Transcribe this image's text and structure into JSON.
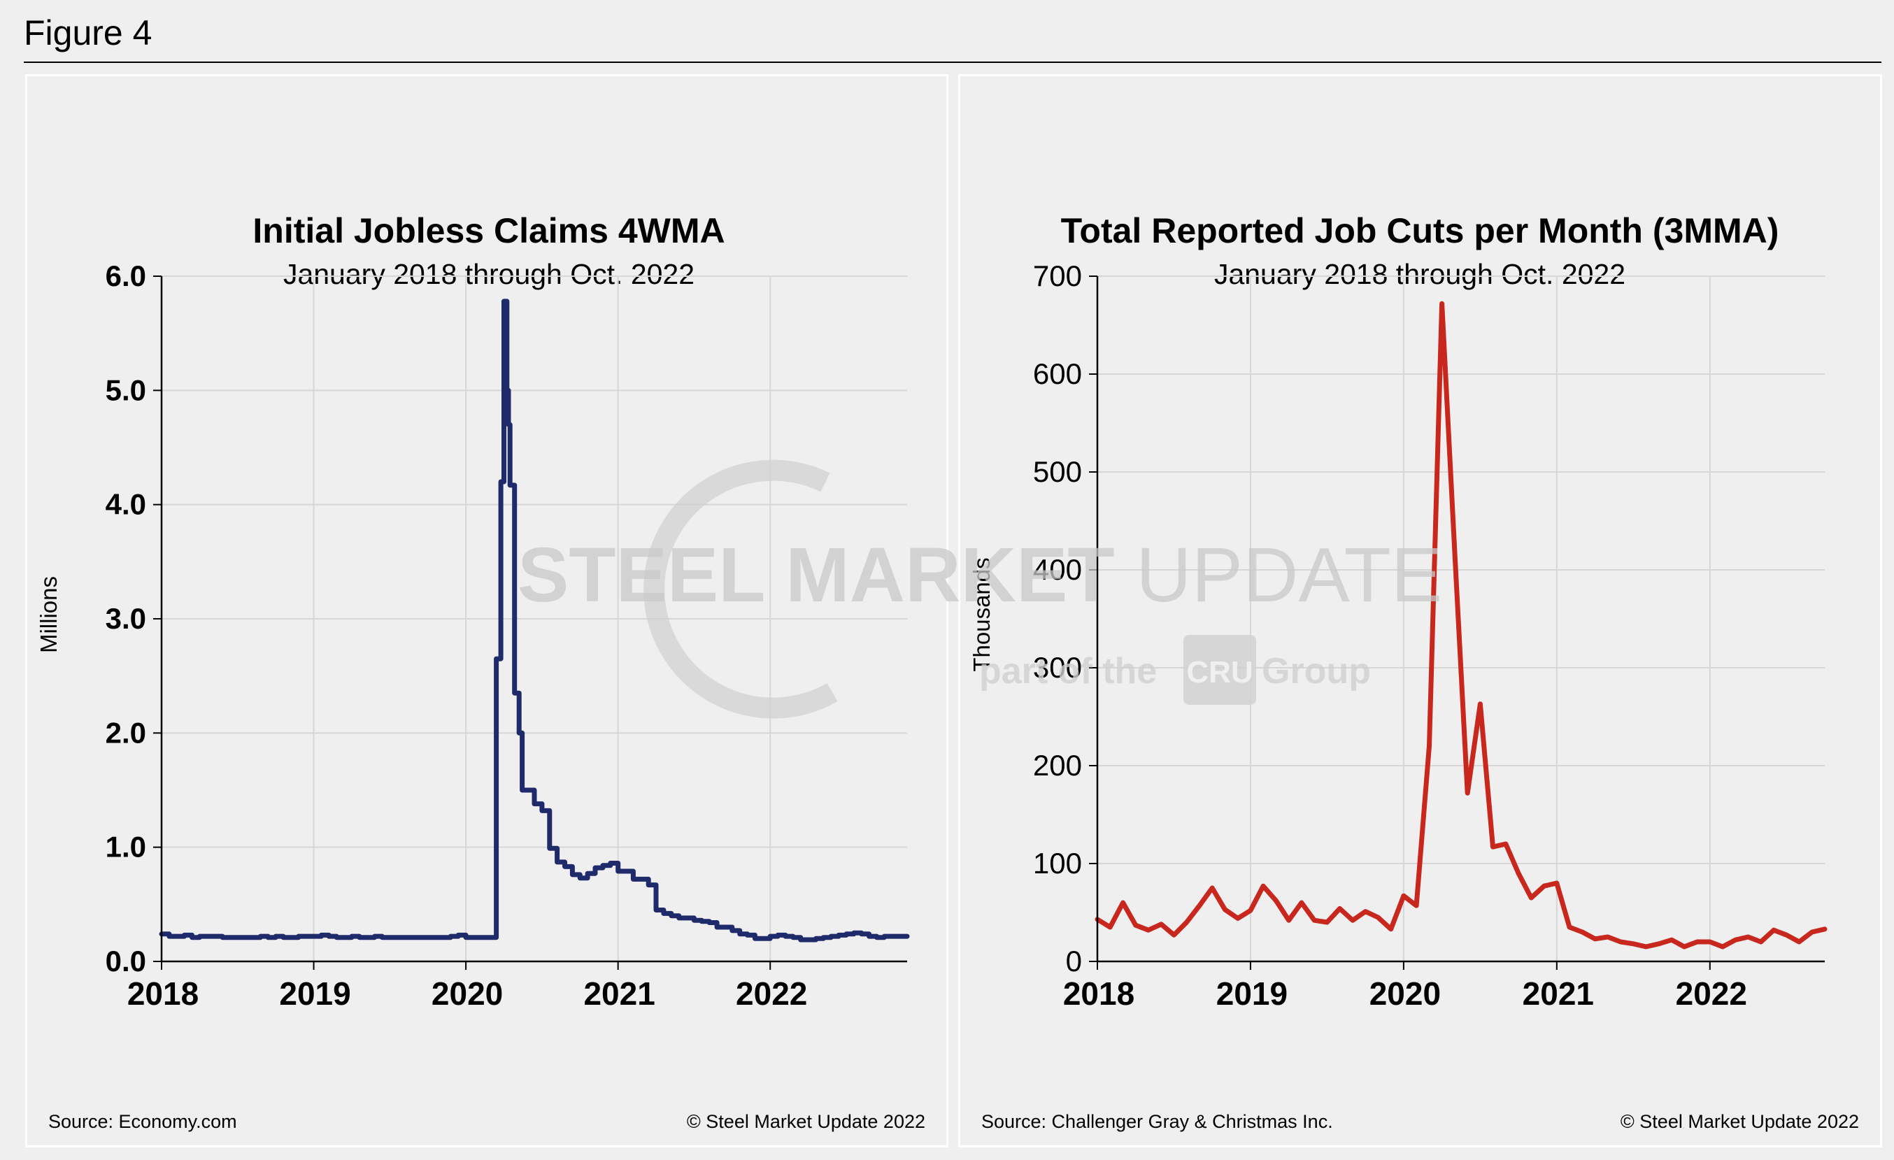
{
  "figure": {
    "label": "Figure 4"
  },
  "watermark": {
    "text_bold": "STEEL MARKET",
    "text_light": " UPDATE",
    "sub_pre": "part of the ",
    "sub_logo": "CRU",
    "sub_post": " Group"
  },
  "colors": {
    "left_series": "#1f2a6b",
    "right_series": "#c8271e",
    "grid": "#d6d6d6"
  },
  "chart_data": [
    {
      "type": "line",
      "title": "Initial Jobless Claims 4WMA",
      "subtitle": "January 2018 through Oct. 2022",
      "ylabel": "Millions",
      "xlabel": "",
      "x_ticks": [
        "2018",
        "2019",
        "2020",
        "2021",
        "2022"
      ],
      "y_ticks": [
        "6.0",
        "5.0",
        "4.0",
        "3.0",
        "2.0",
        "1.0",
        "0.0"
      ],
      "xlim": [
        2018.0,
        2022.9
      ],
      "ylim": [
        0,
        6
      ],
      "grid": true,
      "source": "Source: Economy.com",
      "copyright": "© Steel Market Update 2022",
      "series": [
        {
          "color": "#1f2a6b",
          "step": true,
          "x": [
            2018.0,
            2018.05,
            2018.1,
            2018.15,
            2018.2,
            2018.25,
            2018.3,
            2018.35,
            2018.4,
            2018.45,
            2018.5,
            2018.55,
            2018.6,
            2018.65,
            2018.7,
            2018.75,
            2018.8,
            2018.85,
            2018.9,
            2018.95,
            2019.0,
            2019.05,
            2019.1,
            2019.15,
            2019.2,
            2019.25,
            2019.3,
            2019.35,
            2019.4,
            2019.45,
            2019.5,
            2019.55,
            2019.6,
            2019.65,
            2019.7,
            2019.75,
            2019.8,
            2019.85,
            2019.9,
            2019.95,
            2020.0,
            2020.05,
            2020.1,
            2020.15,
            2020.2,
            2020.23,
            2020.25,
            2020.27,
            2020.28,
            2020.29,
            2020.32,
            2020.35,
            2020.37,
            2020.45,
            2020.5,
            2020.55,
            2020.6,
            2020.65,
            2020.7,
            2020.75,
            2020.8,
            2020.85,
            2020.9,
            2020.95,
            2021.0,
            2021.05,
            2021.1,
            2021.15,
            2021.2,
            2021.25,
            2021.3,
            2021.35,
            2021.4,
            2021.45,
            2021.5,
            2021.55,
            2021.6,
            2021.65,
            2021.7,
            2021.75,
            2021.8,
            2021.85,
            2021.9,
            2021.95,
            2022.0,
            2022.05,
            2022.1,
            2022.15,
            2022.2,
            2022.25,
            2022.3,
            2022.35,
            2022.4,
            2022.45,
            2022.5,
            2022.55,
            2022.6,
            2022.65,
            2022.7,
            2022.75,
            2022.8,
            2022.85,
            2022.9
          ],
          "y": [
            0.24,
            0.22,
            0.22,
            0.23,
            0.21,
            0.22,
            0.22,
            0.22,
            0.21,
            0.21,
            0.21,
            0.21,
            0.21,
            0.22,
            0.21,
            0.22,
            0.21,
            0.21,
            0.22,
            0.22,
            0.22,
            0.23,
            0.22,
            0.21,
            0.21,
            0.22,
            0.21,
            0.21,
            0.22,
            0.21,
            0.21,
            0.21,
            0.21,
            0.21,
            0.21,
            0.21,
            0.21,
            0.21,
            0.22,
            0.23,
            0.21,
            0.21,
            0.21,
            0.21,
            2.65,
            4.2,
            5.78,
            5.0,
            4.7,
            4.17,
            2.35,
            2.0,
            1.5,
            1.38,
            1.32,
            0.99,
            0.87,
            0.83,
            0.76,
            0.73,
            0.77,
            0.82,
            0.84,
            0.86,
            0.79,
            0.79,
            0.72,
            0.72,
            0.67,
            0.45,
            0.42,
            0.4,
            0.38,
            0.38,
            0.36,
            0.35,
            0.34,
            0.3,
            0.3,
            0.27,
            0.24,
            0.23,
            0.2,
            0.2,
            0.22,
            0.23,
            0.22,
            0.21,
            0.19,
            0.19,
            0.2,
            0.21,
            0.22,
            0.23,
            0.24,
            0.25,
            0.24,
            0.22,
            0.21,
            0.22,
            0.22,
            0.22,
            0.22
          ]
        }
      ]
    },
    {
      "type": "line",
      "title": "Total Reported Job Cuts per Month (3MMA)",
      "subtitle": "January 2018 through Oct. 2022",
      "ylabel": "Thousands",
      "xlabel": "",
      "x_ticks": [
        "2018",
        "2019",
        "2020",
        "2021",
        "2022"
      ],
      "y_ticks": [
        "700",
        "600",
        "500",
        "400",
        "300",
        "200",
        "100",
        "0"
      ],
      "xlim": [
        2018.0,
        2022.75
      ],
      "ylim": [
        0,
        700
      ],
      "grid": true,
      "source": "Source: Challenger Gray & Christmas Inc.",
      "copyright": "© Steel Market Update 2022",
      "series": [
        {
          "color": "#c8271e",
          "step": false,
          "x": [
            2018.0,
            2018.083,
            2018.167,
            2018.25,
            2018.333,
            2018.417,
            2018.5,
            2018.583,
            2018.667,
            2018.75,
            2018.833,
            2018.917,
            2019.0,
            2019.083,
            2019.167,
            2019.25,
            2019.333,
            2019.417,
            2019.5,
            2019.583,
            2019.667,
            2019.75,
            2019.833,
            2019.917,
            2020.0,
            2020.083,
            2020.167,
            2020.25,
            2020.333,
            2020.417,
            2020.5,
            2020.583,
            2020.667,
            2020.75,
            2020.833,
            2020.917,
            2021.0,
            2021.083,
            2021.167,
            2021.25,
            2021.333,
            2021.417,
            2021.5,
            2021.583,
            2021.667,
            2021.75,
            2021.833,
            2021.917,
            2022.0,
            2022.083,
            2022.167,
            2022.25,
            2022.333,
            2022.417,
            2022.5,
            2022.583,
            2022.667,
            2022.75
          ],
          "y": [
            43,
            35,
            60,
            37,
            32,
            38,
            27,
            40,
            57,
            75,
            53,
            44,
            52,
            77,
            62,
            42,
            60,
            42,
            40,
            54,
            42,
            51,
            45,
            33,
            67,
            57,
            220,
            672,
            420,
            172,
            263,
            117,
            120,
            90,
            65,
            77,
            80,
            35,
            30,
            23,
            25,
            20,
            18,
            15,
            18,
            22,
            15,
            20,
            20,
            15,
            22,
            25,
            20,
            32,
            27,
            20,
            30,
            33
          ]
        }
      ]
    }
  ]
}
